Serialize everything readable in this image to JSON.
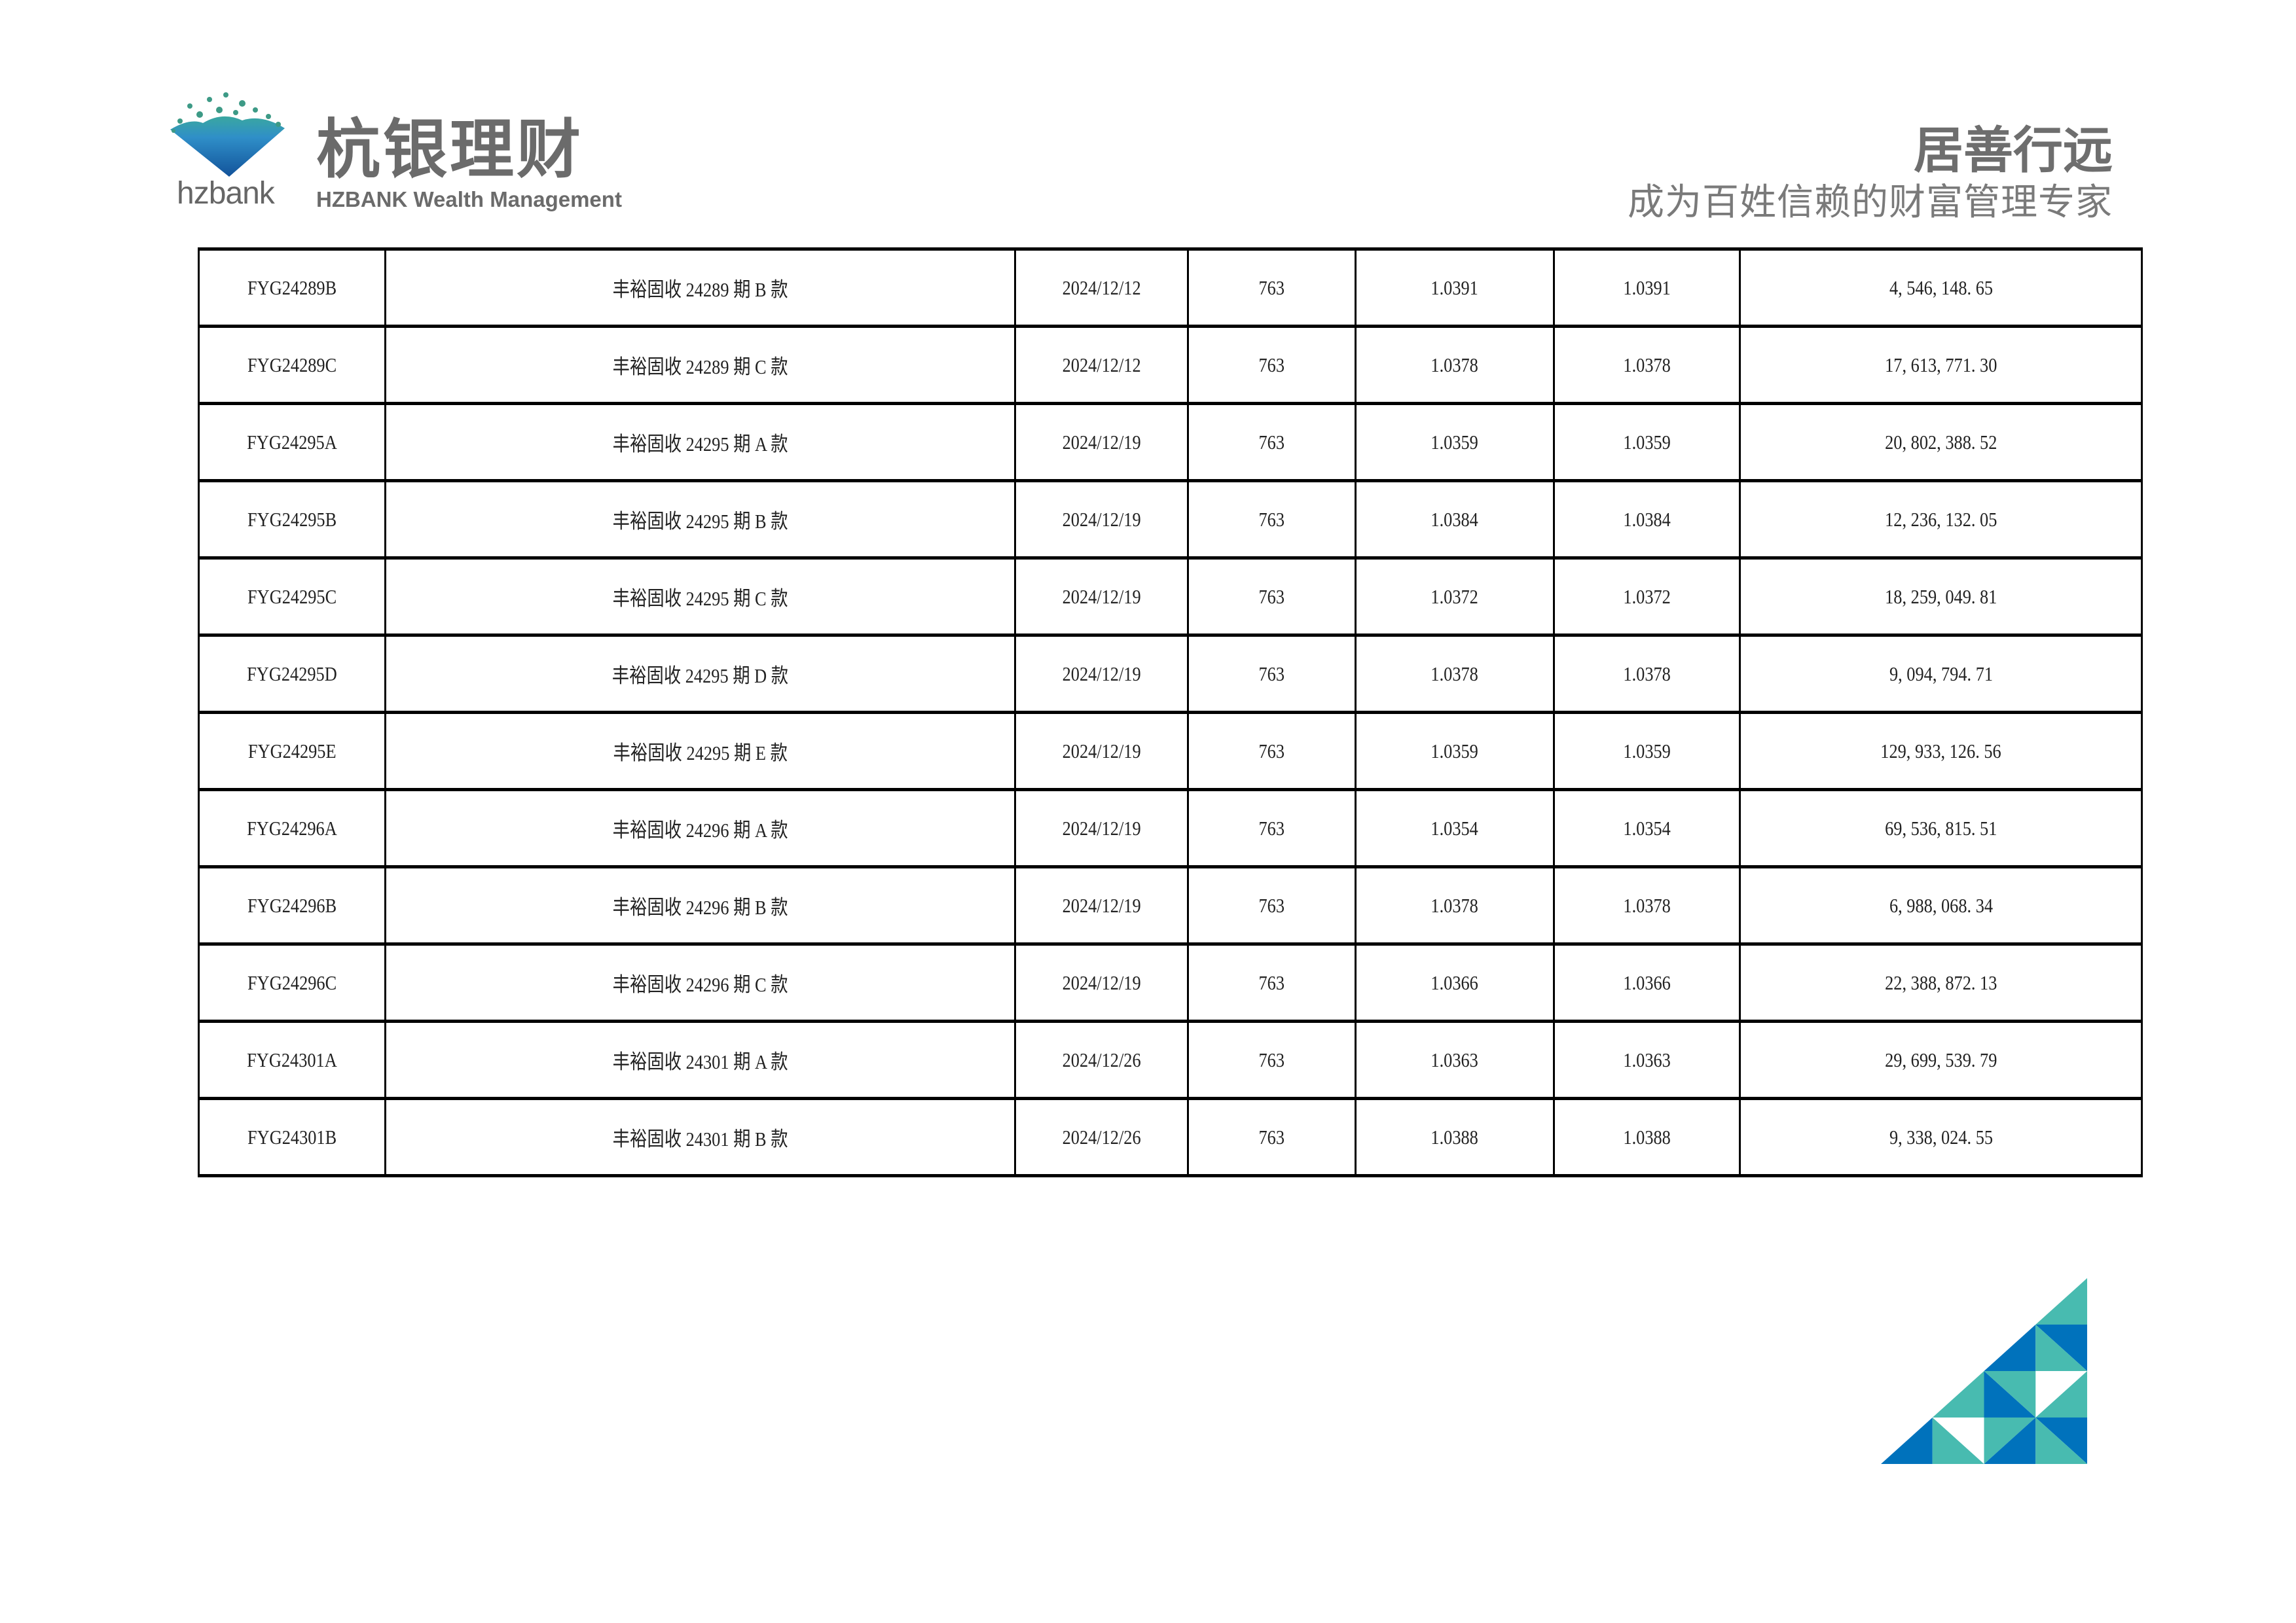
{
  "header": {
    "logo": {
      "mark_text": "hzbank",
      "name_cn": "杭银理财",
      "name_en": "HZBANK Wealth Management"
    },
    "slogan": "居善行远",
    "tagline": "成为百姓信赖的财富管理专家"
  },
  "colors": {
    "blue": "#0072BC",
    "teal": "#48BBB0",
    "text_gray": "#6b6b6b"
  },
  "table": {
    "rows": [
      [
        "FYG24289B",
        "丰裕固收 24289 期 B 款",
        "2024/12/12",
        "763",
        "1.0391",
        "1.0391",
        "4, 546, 148. 65"
      ],
      [
        "FYG24289C",
        "丰裕固收 24289 期 C 款",
        "2024/12/12",
        "763",
        "1.0378",
        "1.0378",
        "17, 613, 771. 30"
      ],
      [
        "FYG24295A",
        "丰裕固收 24295 期 A 款",
        "2024/12/19",
        "763",
        "1.0359",
        "1.0359",
        "20, 802, 388. 52"
      ],
      [
        "FYG24295B",
        "丰裕固收 24295 期 B 款",
        "2024/12/19",
        "763",
        "1.0384",
        "1.0384",
        "12, 236, 132. 05"
      ],
      [
        "FYG24295C",
        "丰裕固收 24295 期 C 款",
        "2024/12/19",
        "763",
        "1.0372",
        "1.0372",
        "18, 259, 049. 81"
      ],
      [
        "FYG24295D",
        "丰裕固收 24295 期 D 款",
        "2024/12/19",
        "763",
        "1.0378",
        "1.0378",
        "9, 094, 794. 71"
      ],
      [
        "FYG24295E",
        "丰裕固收 24295 期 E 款",
        "2024/12/19",
        "763",
        "1.0359",
        "1.0359",
        "129, 933, 126. 56"
      ],
      [
        "FYG24296A",
        "丰裕固收 24296 期 A 款",
        "2024/12/19",
        "763",
        "1.0354",
        "1.0354",
        "69, 536, 815. 51"
      ],
      [
        "FYG24296B",
        "丰裕固收 24296 期 B 款",
        "2024/12/19",
        "763",
        "1.0378",
        "1.0378",
        "6, 988, 068. 34"
      ],
      [
        "FYG24296C",
        "丰裕固收 24296 期 C 款",
        "2024/12/19",
        "763",
        "1.0366",
        "1.0366",
        "22, 388, 872. 13"
      ],
      [
        "FYG24301A",
        "丰裕固收 24301 期 A 款",
        "2024/12/26",
        "763",
        "1.0363",
        "1.0363",
        "29, 699, 539. 79"
      ],
      [
        "FYG24301B",
        "丰裕固收 24301 期 B 款",
        "2024/12/26",
        "763",
        "1.0388",
        "1.0388",
        "9, 338, 024. 55"
      ]
    ]
  }
}
